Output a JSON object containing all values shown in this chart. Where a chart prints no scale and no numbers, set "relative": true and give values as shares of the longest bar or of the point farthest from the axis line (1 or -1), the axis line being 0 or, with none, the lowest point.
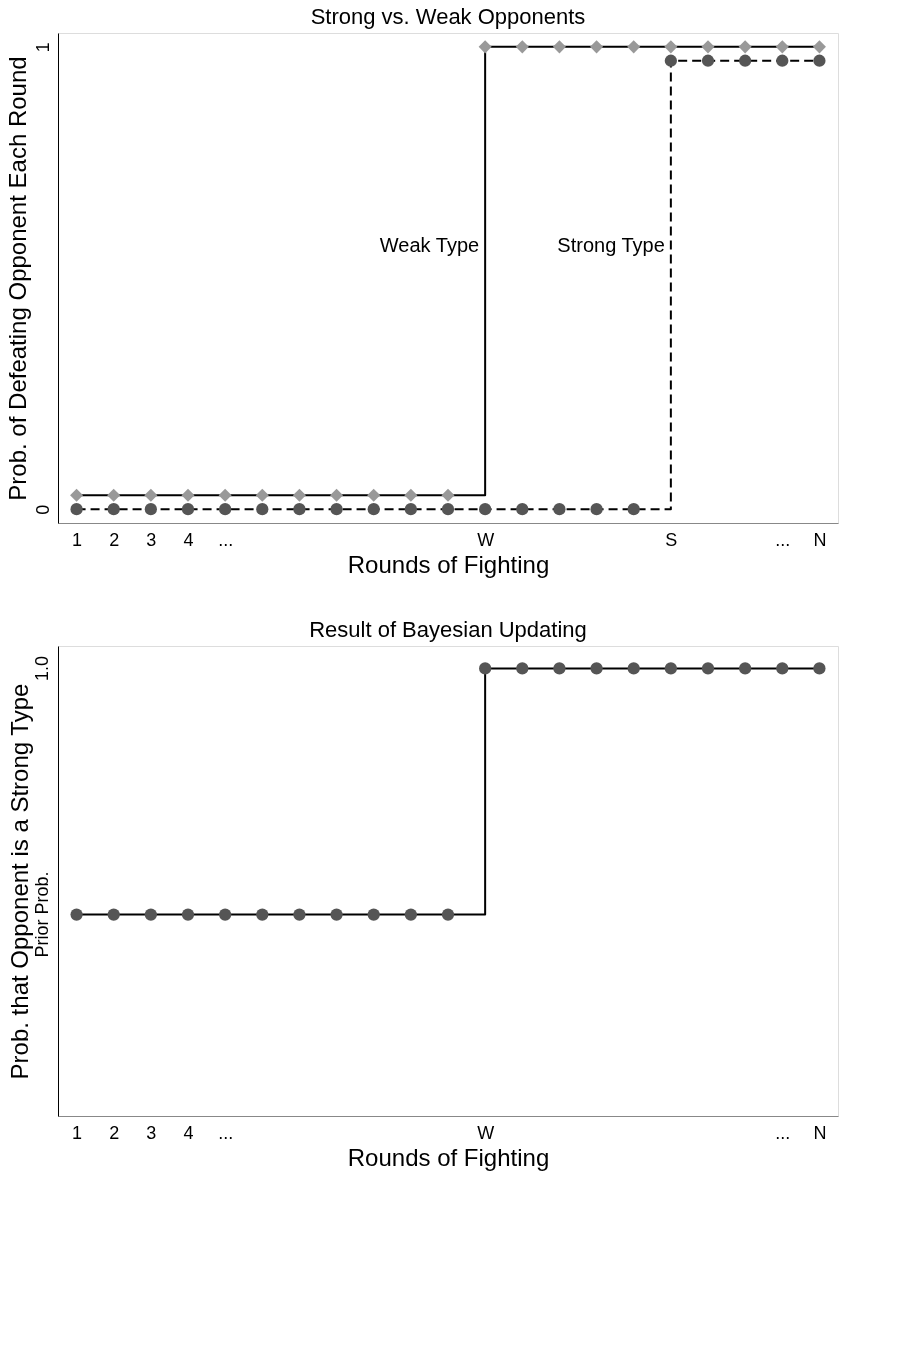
{
  "chart_data": [
    {
      "type": "step",
      "title": "Strong vs. Weak Opponents",
      "xlabel": "Rounds of Fighting",
      "ylabel": "Prob. of Defeating Opponent Each Round",
      "categories": [
        "1",
        "2",
        "3",
        "4",
        "...",
        null,
        null,
        null,
        null,
        null,
        null,
        "W",
        null,
        null,
        null,
        null,
        "S",
        null,
        null,
        "...",
        "N"
      ],
      "ylim": [
        -0.03,
        1.03
      ],
      "yticks": [
        0,
        1
      ],
      "series": [
        {
          "color": "#999999",
          "marker": "diamond",
          "line_style": "solid",
          "values": [
            0.03,
            0.03,
            0.03,
            0.03,
            0.03,
            0.03,
            0.03,
            0.03,
            0.03,
            0.03,
            0.03,
            1,
            1,
            1,
            1,
            1,
            1,
            1,
            1,
            1,
            1
          ]
        },
        {
          "color": "#555555",
          "marker": "circle",
          "line_style": "dashed",
          "values": [
            0,
            0,
            0,
            0,
            0,
            0,
            0,
            0,
            0,
            0,
            0,
            0,
            0,
            0,
            0,
            0,
            0.97,
            0.97,
            0.97,
            0.97,
            0.97
          ]
        }
      ],
      "annotations": [
        {
          "text": "Weak Type",
          "x": "W",
          "y": 0.57
        },
        {
          "text": "Strong Type",
          "x": "S",
          "y": 0.57
        }
      ]
    },
    {
      "type": "step",
      "title": "Result of Bayesian Updating",
      "xlabel": "Rounds of Fighting",
      "ylabel": "Prob. that Opponent is a Strong Type",
      "categories": [
        "1",
        "2",
        "3",
        "4",
        "...",
        null,
        null,
        null,
        null,
        null,
        null,
        "W",
        null,
        null,
        null,
        null,
        null,
        null,
        null,
        "...",
        "N"
      ],
      "relative": true,
      "annotations": [
        {
          "text": "Prior Prob.",
          "x": "1",
          "y": 0.45
        },
        "1.0"
      ],
      "series": [
        {
          "color": "#555555",
          "marker": "circle",
          "line_style": "solid",
          "values": [
            0.45,
            0.45,
            0.45,
            0.45,
            0.45,
            0.45,
            0.45,
            0.45,
            0.45,
            0.45,
            0.45,
            1,
            1,
            1,
            1,
            1,
            1,
            1,
            1,
            1,
            1
          ]
        }
      ]
    }
  ]
}
